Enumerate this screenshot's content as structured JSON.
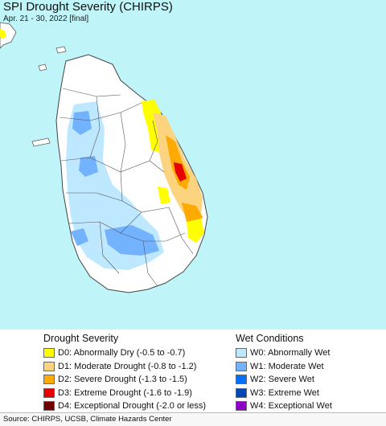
{
  "header": {
    "title": "SPI Drought Severity (CHIRPS)",
    "subtitle": "Apr. 21 - 30, 2022 [final]"
  },
  "map": {
    "ocean_color": "#bff5f8",
    "land_color": "#ffffff",
    "border_color": "#555555"
  },
  "legend": {
    "drought": {
      "title": "Drought Severity",
      "items": [
        {
          "label": "D0: Abnormally Dry (-0.5 to -0.7)",
          "color": "#ffff00"
        },
        {
          "label": "D1: Moderate Drought (-0.8 to -1.2)",
          "color": "#fcd37f"
        },
        {
          "label": "D2: Severe Drought (-1.3 to -1.5)",
          "color": "#ffaa00"
        },
        {
          "label": "D3: Extreme Drought (-1.6 to -1.9)",
          "color": "#e60000"
        },
        {
          "label": "D4: Exceptional Drought (-2.0 or less)",
          "color": "#730000"
        }
      ]
    },
    "wet": {
      "title": "Wet Conditions",
      "items": [
        {
          "label": "W0: Abnormally Wet",
          "color": "#bee8ff"
        },
        {
          "label": "W1: Moderate Wet",
          "color": "#73b2ff"
        },
        {
          "label": "W2: Severe Wet",
          "color": "#0070ff"
        },
        {
          "label": "W3: Extreme Wet",
          "color": "#0046b4"
        },
        {
          "label": "W4: Exceptional Wet",
          "color": "#8c00c8"
        }
      ]
    }
  },
  "footer": {
    "source": "Source: CHIRPS, UCSB, Climate Hazards Center"
  }
}
